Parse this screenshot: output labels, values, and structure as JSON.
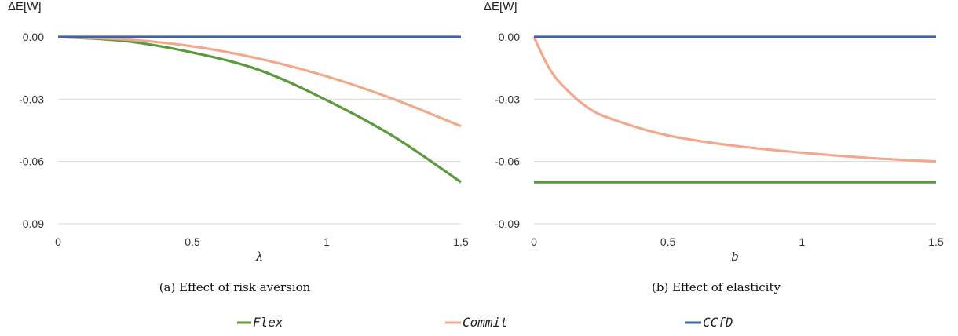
{
  "legend": [
    {
      "name": "Flex",
      "color": "#5a9a3c"
    },
    {
      "name": "Commit",
      "color": "#f2a88c"
    },
    {
      "name": "CCfD",
      "color": "#3d64a8"
    }
  ],
  "chart_data": [
    {
      "type": "line",
      "caption": "(a) Effect of risk aversion",
      "ylabel": "ΔE[W]",
      "xlabel": "λ",
      "xlim": [
        0,
        1.5
      ],
      "ylim": [
        -0.09,
        0.0
      ],
      "xticks": [
        "0",
        "0.5",
        "1",
        "1.5"
      ],
      "xtick_values": [
        0,
        0.5,
        1,
        1.5
      ],
      "yticks": [
        "0.00",
        "-0.03",
        "-0.06",
        "-0.09"
      ],
      "ytick_values": [
        0,
        -0.03,
        -0.06,
        -0.09
      ],
      "grid": "horizontal",
      "series": [
        {
          "name": "Flex",
          "color": "#5a9a3c",
          "x": [
            0,
            0.25,
            0.5,
            0.75,
            1.0,
            1.25,
            1.5
          ],
          "y": [
            0,
            -0.002,
            -0.0075,
            -0.016,
            -0.0305,
            -0.048,
            -0.07
          ]
        },
        {
          "name": "Commit",
          "color": "#f2a88c",
          "x": [
            0,
            0.25,
            0.5,
            0.75,
            1.0,
            1.25,
            1.5
          ],
          "y": [
            0,
            -0.0012,
            -0.0045,
            -0.0105,
            -0.019,
            -0.03,
            -0.043
          ]
        },
        {
          "name": "CCfD",
          "color": "#3d64a8",
          "x": [
            0,
            1.5
          ],
          "y": [
            0,
            0
          ]
        }
      ]
    },
    {
      "type": "line",
      "caption": "(b) Effect of elasticity",
      "ylabel": "ΔE[W]",
      "xlabel": "b",
      "xlim": [
        0,
        1.5
      ],
      "ylim": [
        -0.09,
        0.0
      ],
      "xticks": [
        "0",
        "0.5",
        "1",
        "1.5"
      ],
      "xtick_values": [
        0,
        0.5,
        1,
        1.5
      ],
      "yticks": [
        "0.00",
        "-0.03",
        "-0.06",
        "-0.09"
      ],
      "ytick_values": [
        0,
        -0.03,
        -0.06,
        -0.09
      ],
      "grid": "horizontal",
      "series": [
        {
          "name": "Flex",
          "color": "#5a9a3c",
          "x": [
            0,
            1.5
          ],
          "y": [
            -0.07,
            -0.07
          ]
        },
        {
          "name": "Commit",
          "color": "#f2a88c",
          "x": [
            0,
            0.05,
            0.1,
            0.2,
            0.3,
            0.5,
            0.75,
            1.0,
            1.25,
            1.5
          ],
          "y": [
            0,
            -0.0135,
            -0.0225,
            -0.034,
            -0.04,
            -0.0475,
            -0.0525,
            -0.0558,
            -0.0583,
            -0.06
          ]
        },
        {
          "name": "CCfD",
          "color": "#3d64a8",
          "x": [
            0,
            1.5
          ],
          "y": [
            0,
            0
          ]
        }
      ]
    }
  ]
}
